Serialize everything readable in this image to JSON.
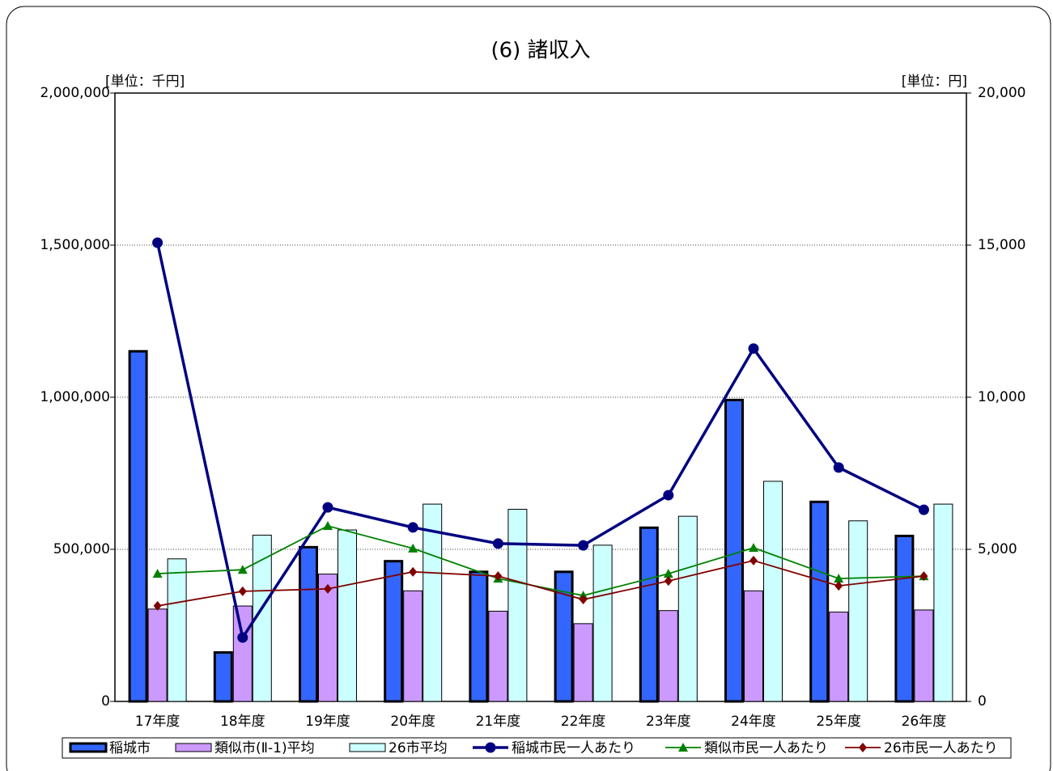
{
  "chart_data": {
    "type": "combo",
    "title": "(6) 諸収入",
    "y_unit_label": "[単位：千円]",
    "y2_unit_label": "[単位：円]",
    "categories": [
      "17年度",
      "18年度",
      "19年度",
      "20年度",
      "21年度",
      "22年度",
      "23年度",
      "24年度",
      "25年度",
      "26年度"
    ],
    "series": [
      {
        "name": "稲城市",
        "type": "bar",
        "color": "#3366ff",
        "values": [
          1155000,
          165000,
          511000,
          465000,
          430000,
          430000,
          575000,
          995000,
          660000,
          548000
        ]
      },
      {
        "name": "類似市(Ⅱ-1)平均",
        "type": "bar",
        "color": "#cc99ff",
        "values": [
          305000,
          315000,
          420000,
          365000,
          298000,
          257000,
          300000,
          365000,
          295000,
          302000
        ]
      },
      {
        "name": "26市平均",
        "type": "bar",
        "color": "#ccffff",
        "values": [
          470000,
          548000,
          565000,
          650000,
          633000,
          515000,
          610000,
          725000,
          595000,
          650000
        ]
      },
      {
        "name": "稲城市民一人あたり",
        "type": "line",
        "axis": "y2",
        "marker": "circle",
        "color": "#000080",
        "values": [
          15080,
          2100,
          6380,
          5720,
          5190,
          5130,
          6780,
          11600,
          7690,
          6300
        ]
      },
      {
        "name": "類似市民一人あたり",
        "type": "line",
        "axis": "y2",
        "marker": "triangle",
        "color": "#008000",
        "values": [
          4200,
          4330,
          5770,
          5030,
          4040,
          3480,
          4200,
          5050,
          4040,
          4120
        ]
      },
      {
        "name": "26市民一人あたり",
        "type": "line",
        "axis": "y2",
        "marker": "diamond",
        "color": "#800000",
        "values": [
          3140,
          3620,
          3700,
          4260,
          4120,
          3350,
          3960,
          4630,
          3800,
          4120
        ]
      }
    ],
    "ylim": [
      0,
      2000000
    ],
    "yticks": [
      0,
      {
        "value": 500000,
        "label": "500,000"
      },
      {
        "value": 1000000,
        "label": "1,000,000"
      },
      {
        "value": 1500000,
        "label": "1,500,000"
      },
      {
        "value": 2000000,
        "label": "2,000,000"
      }
    ],
    "y2lim": [
      0,
      20000
    ],
    "y2ticks": [
      0,
      {
        "value": 5000,
        "label": "5,000"
      },
      {
        "value": 10000,
        "label": "10,000"
      },
      {
        "value": 15000,
        "label": "15,000"
      },
      {
        "value": 20000,
        "label": "20,000"
      }
    ],
    "grid": true
  }
}
